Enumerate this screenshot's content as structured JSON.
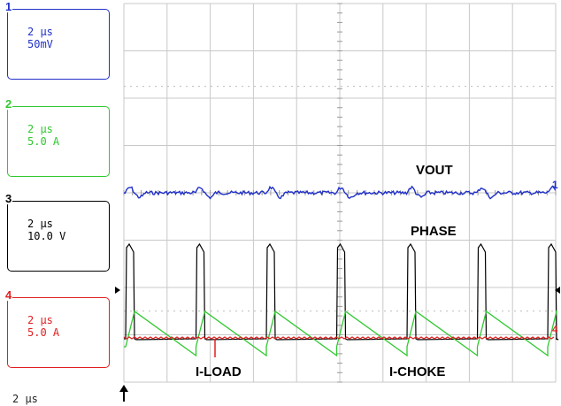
{
  "channels": [
    {
      "num": "1",
      "timebase": "2 µs",
      "scale": "50mV",
      "color": "#2030c8"
    },
    {
      "num": "2",
      "timebase": "2 µs",
      "scale": "5.0 A",
      "color": "#30c830"
    },
    {
      "num": "3",
      "timebase": "2 µs",
      "scale": "10.0 V",
      "color": "#000000"
    },
    {
      "num": "4",
      "timebase": "2 µs",
      "scale": "5.0 A",
      "color": "#e02020"
    }
  ],
  "timebase": "2 µs",
  "trace_labels": {
    "vout": "VOUT",
    "phase": "PHASE",
    "iload": "I-LOAD",
    "ichoke": "I-CHOKE"
  },
  "markers": {
    "ch1_right": "1",
    "ch4_right": "4"
  }
}
